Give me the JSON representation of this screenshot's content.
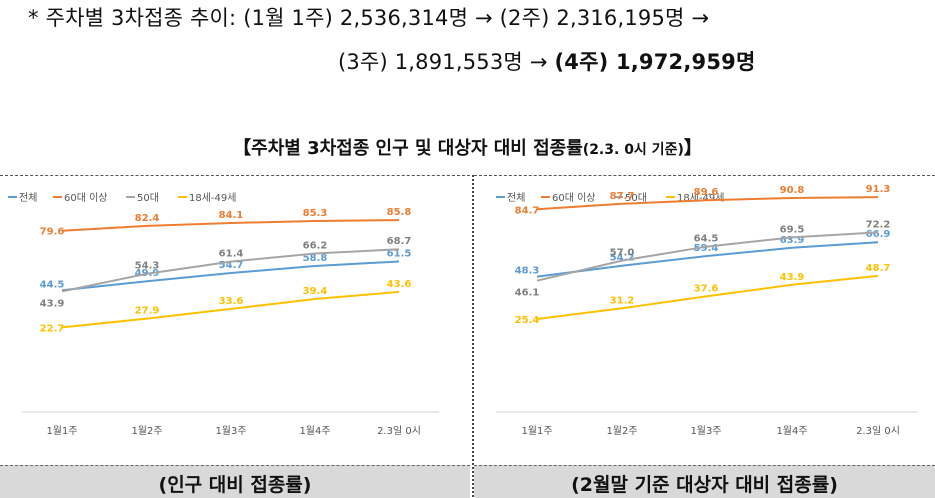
{
  "note": {
    "line1": "* 주차별 3차접종 추이: (1월 1주) 2,536,314명 → (2주) 2,316,195명 →",
    "line2_pre": "(3주) 1,891,553명 → ",
    "line2_bold": "(4주) 1,972,959명"
  },
  "section_title": {
    "main": "【주차별 3차접종 인구 및 대상자 대비 접종률",
    "sub": "(2.3. 0시 기준)",
    "end": "】"
  },
  "captions": {
    "left": "(인구 대비 접종률)",
    "right": "(2월말 기준 대상자 대비 접종률)"
  },
  "chart_data": [
    {
      "type": "line",
      "title": "",
      "categories": [
        "1월1주",
        "1월2주",
        "1월3주",
        "1월4주",
        "2.3일 0시"
      ],
      "ylim": [
        0,
        100
      ],
      "grid": false,
      "legend": "top-left",
      "series": [
        {
          "name": "전체",
          "color": "#5b9bd5",
          "values": [
            44.5,
            49.9,
            54.7,
            58.8,
            61.5
          ],
          "labels": [
            "44.5",
            "49.9",
            "54.7",
            "58.8",
            "61.5"
          ]
        },
        {
          "name": "60대 이상",
          "color": "#ed7d31",
          "values": [
            79.6,
            82.4,
            84.1,
            85.3,
            85.8
          ],
          "labels": [
            "79.6",
            "82.4",
            "84.1",
            "85.3",
            "85.8"
          ]
        },
        {
          "name": "50대",
          "color": "#a5a5a5",
          "values": [
            43.9,
            54.3,
            61.4,
            66.2,
            68.7
          ],
          "labels": [
            "43.9",
            "54.3",
            "61.4",
            "66.2",
            "68.7"
          ]
        },
        {
          "name": "18세-49세",
          "color": "#ffc000",
          "values": [
            22.7,
            27.9,
            33.6,
            39.4,
            43.6
          ],
          "labels": [
            "22.7",
            "27.9",
            "33.6",
            "39.4",
            "43.6"
          ]
        }
      ]
    },
    {
      "type": "line",
      "title": "",
      "categories": [
        "1월1주",
        "1월2주",
        "1월3주",
        "1월4주",
        "2.3일 0시"
      ],
      "ylim": [
        0,
        100
      ],
      "grid": false,
      "legend": "top-left",
      "series": [
        {
          "name": "전체",
          "color": "#5b9bd5",
          "values": [
            48.3,
            54.2,
            59.4,
            63.9,
            66.9
          ],
          "labels": [
            "48.3",
            "54.2",
            "59.4",
            "63.9",
            "66.9"
          ]
        },
        {
          "name": "60대 이상",
          "color": "#ed7d31",
          "values": [
            84.7,
            87.7,
            89.6,
            90.8,
            91.3
          ],
          "labels": [
            "84.7",
            "87.7",
            "89.6",
            "90.8",
            "91.3"
          ]
        },
        {
          "name": "50대",
          "color": "#a5a5a5",
          "values": [
            46.1,
            57.0,
            64.5,
            69.5,
            72.2
          ],
          "labels": [
            "46.1",
            "57.0",
            "64.5",
            "69.5",
            "72.2"
          ]
        },
        {
          "name": "18세-49세",
          "color": "#ffc000",
          "values": [
            25.4,
            31.2,
            37.6,
            43.9,
            48.7
          ],
          "labels": [
            "25.4",
            "31.2",
            "37.6",
            "43.9",
            "48.7"
          ]
        }
      ]
    }
  ]
}
